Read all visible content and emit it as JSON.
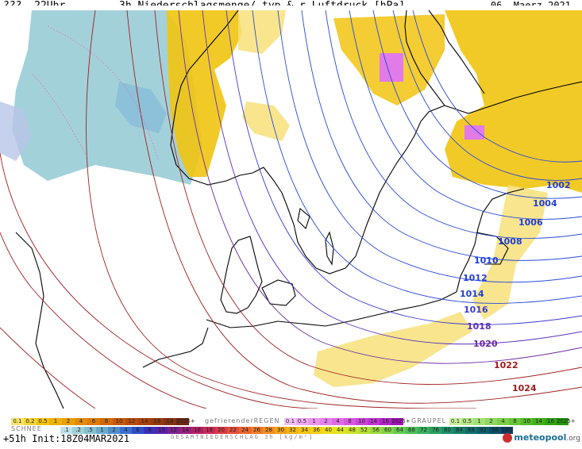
{
  "header": {
    "time_label": "???, 22Uhr",
    "title": "3h Niederschlagsmenge/-typ & r.Luftdruck [hPa]",
    "date": "06. Maerz 2021"
  },
  "isobars": [
    {
      "label": "1002",
      "color": "#1f3fd6"
    },
    {
      "label": "1004",
      "color": "#1f3fd6"
    },
    {
      "label": "1006",
      "color": "#1f3fd6"
    },
    {
      "label": "1008",
      "color": "#1f3fd6"
    },
    {
      "label": "1010",
      "color": "#1f3fd6"
    },
    {
      "label": "1012",
      "color": "#1f3fd6"
    },
    {
      "label": "1014",
      "color": "#1f3fd6"
    },
    {
      "label": "1016",
      "color": "#3a3ad0"
    },
    {
      "label": "1018",
      "color": "#5a2fc0"
    },
    {
      "label": "1020",
      "color": "#6a2aa0"
    },
    {
      "label": "1022",
      "color": "#9a1a1a"
    },
    {
      "label": "1024",
      "color": "#9a1a1a"
    }
  ],
  "legend": {
    "rain_scale": [
      "0.1",
      "0.2",
      "0.5",
      "1",
      "2",
      "4",
      "6",
      "8",
      "10",
      "12",
      "14",
      "16",
      "18",
      "2025+"
    ],
    "freezing_title": "gefrierenderREGEN",
    "freezing_scale": [
      "0.1",
      "0.5",
      "1",
      "2",
      "4",
      "8",
      "10",
      "14",
      "16",
      "2025+"
    ],
    "graupel_title": "GRAUPEL",
    "graupel_scale": [
      "0.1",
      "0.5",
      "1",
      "2",
      "4",
      "8",
      "10",
      "14",
      "16",
      "2025+"
    ],
    "snow_title": "SCHNEE",
    "snow_scale": [
      ".1",
      ".2",
      ".5",
      "1",
      "2",
      "4",
      "6",
      "8",
      "10",
      "12",
      "14",
      "16",
      "18",
      "20",
      "22",
      "24",
      "26",
      "28",
      "30",
      "32",
      "34",
      "36",
      "40",
      "44",
      "48",
      "52",
      "56",
      "60",
      "64",
      "68",
      "72",
      "76",
      "80",
      "84",
      "88",
      "92",
      "96",
      "100"
    ],
    "total_title": "GESAMTNIEDERSCHLAG 3h [kg/m²]"
  },
  "footer": {
    "init": "+51h Init:18Z04MAR2021",
    "brand_main": "meteopool",
    "brand_tld": ".org"
  },
  "colors": {
    "rain": "#f1c40f",
    "rain_light": "#f7e07a",
    "snow": "#9ecfd8",
    "freezing": "#e27ae8",
    "graupel": "#7ccf47",
    "land": "#ffffff",
    "coast": "#000000"
  }
}
